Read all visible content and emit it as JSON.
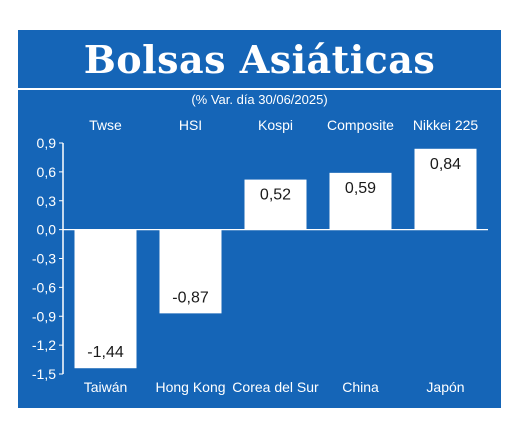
{
  "chart_data": {
    "type": "bar",
    "title": "Bolsas Asiáticas",
    "subtitle": "(% Var. día 30/06/2025)",
    "index_labels": [
      "Twse",
      "HSI",
      "Kospi",
      "Composite",
      "Nikkei 225"
    ],
    "categories": [
      "Taiwán",
      "Hong Kong",
      "Corea del Sur",
      "China",
      "Japón"
    ],
    "values": [
      -1.44,
      -0.87,
      0.52,
      0.59,
      0.84
    ],
    "value_labels": [
      "-1,44",
      "-0,87",
      "0,52",
      "0,59",
      "0,84"
    ],
    "yticks": [
      "0,9",
      "0,6",
      "0,3",
      "0,0",
      "-0,3",
      "-0,6",
      "-0,9",
      "-1,2",
      "-1,5"
    ],
    "ylim": [
      -1.5,
      0.9
    ],
    "grid": false
  },
  "colors": {
    "background": "#1565b7",
    "bar": "#ffffff",
    "text": "#ffffff"
  }
}
